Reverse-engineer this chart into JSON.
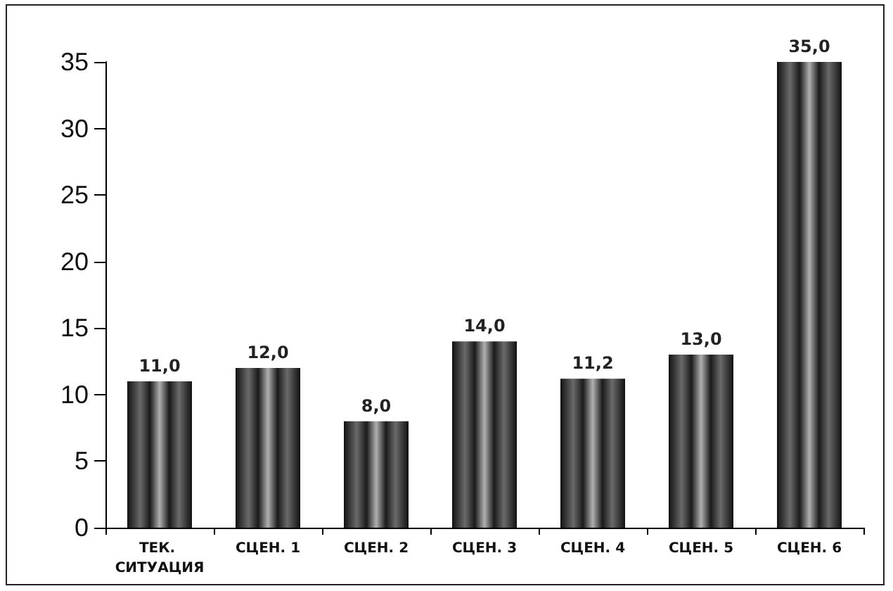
{
  "chart_data": {
    "type": "bar",
    "categories": [
      "ТЕК. СИТУАЦИЯ",
      "СЦЕН. 1",
      "СЦЕН. 2",
      "СЦЕН. 3",
      "СЦЕН. 4",
      "СЦЕН. 5",
      "СЦЕН. 6"
    ],
    "values": [
      11.0,
      12.0,
      8.0,
      14.0,
      11.2,
      13.0,
      35.0
    ],
    "value_labels": [
      "11,0",
      "12,0",
      "8,0",
      "14,0",
      "11,2",
      "13,0",
      "35,0"
    ],
    "color": "#6a6a6a",
    "ylim": [
      0,
      35
    ],
    "yticks": [
      0,
      5,
      10,
      15,
      20,
      25,
      30,
      35
    ],
    "grid": false
  }
}
